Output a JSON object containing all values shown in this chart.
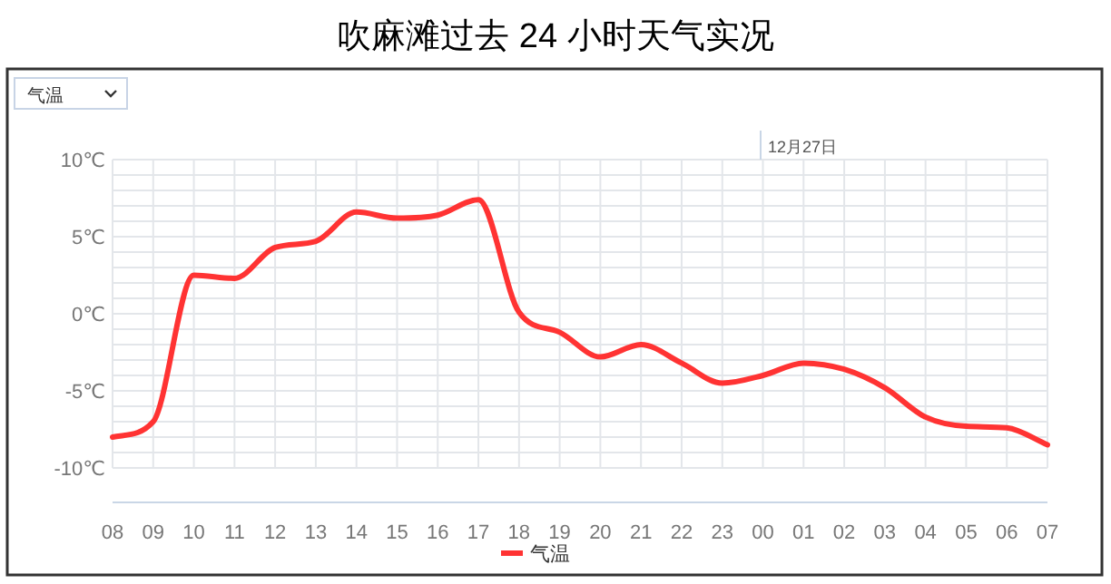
{
  "chart_data": {
    "type": "line",
    "title": "吹麻滩过去 24 小时天气实况",
    "categories": [
      "08",
      "09",
      "10",
      "11",
      "12",
      "13",
      "14",
      "15",
      "16",
      "17",
      "18",
      "19",
      "20",
      "21",
      "22",
      "23",
      "00",
      "01",
      "02",
      "03",
      "04",
      "05",
      "06",
      "07"
    ],
    "series": [
      {
        "name": "气温",
        "color": "#ff3333",
        "values": [
          -8,
          -7,
          2.5,
          2.3,
          4.3,
          4.7,
          6.6,
          6.2,
          6.4,
          7.4,
          0.1,
          -1.2,
          -2.8,
          -2.0,
          -3.2,
          -4.5,
          -4.0,
          -3.2,
          -3.6,
          -4.8,
          -6.7,
          -7.3,
          -7.4,
          -8.5
        ]
      }
    ],
    "ylim": [
      -10,
      10
    ],
    "yticks": [
      {
        "value": -10,
        "label": "-10℃"
      },
      {
        "value": -5,
        "label": "-5℃"
      },
      {
        "value": 0,
        "label": "0℃"
      },
      {
        "value": 5,
        "label": "5℃"
      },
      {
        "value": 10,
        "label": "10℃"
      }
    ],
    "grid": true,
    "legend": "bottom",
    "marker": "none",
    "line_style": "solid",
    "annotations": [
      "气温",
      "12月27日"
    ]
  }
}
